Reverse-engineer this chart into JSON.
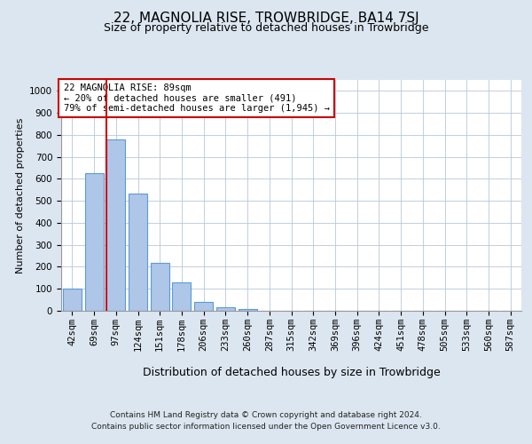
{
  "title": "22, MAGNOLIA RISE, TROWBRIDGE, BA14 7SJ",
  "subtitle": "Size of property relative to detached houses in Trowbridge",
  "xlabel": "Distribution of detached houses by size in Trowbridge",
  "ylabel": "Number of detached properties",
  "categories": [
    "42sqm",
    "69sqm",
    "97sqm",
    "124sqm",
    "151sqm",
    "178sqm",
    "206sqm",
    "233sqm",
    "260sqm",
    "287sqm",
    "315sqm",
    "342sqm",
    "369sqm",
    "396sqm",
    "424sqm",
    "451sqm",
    "478sqm",
    "505sqm",
    "533sqm",
    "560sqm",
    "587sqm"
  ],
  "values": [
    100,
    625,
    780,
    535,
    220,
    130,
    40,
    15,
    10,
    0,
    0,
    0,
    0,
    0,
    0,
    0,
    0,
    0,
    0,
    0,
    0
  ],
  "bar_color": "#aec6e8",
  "bar_edgecolor": "#5b9bd5",
  "bar_linewidth": 0.8,
  "vline_x_index": 2,
  "vline_color": "#cc0000",
  "ylim": [
    0,
    1050
  ],
  "yticks": [
    0,
    100,
    200,
    300,
    400,
    500,
    600,
    700,
    800,
    900,
    1000
  ],
  "annotation_text": "22 MAGNOLIA RISE: 89sqm\n← 20% of detached houses are smaller (491)\n79% of semi-detached houses are larger (1,945) →",
  "annotation_box_color": "#cc0000",
  "footer_line1": "Contains HM Land Registry data © Crown copyright and database right 2024.",
  "footer_line2": "Contains public sector information licensed under the Open Government Licence v3.0.",
  "background_color": "#dce6f0",
  "plot_background": "#ffffff",
  "grid_color": "#b8c8d8",
  "title_fontsize": 11,
  "subtitle_fontsize": 9,
  "xlabel_fontsize": 9,
  "ylabel_fontsize": 8,
  "tick_fontsize": 7.5,
  "footer_fontsize": 6.5,
  "ann_fontsize": 7.5
}
